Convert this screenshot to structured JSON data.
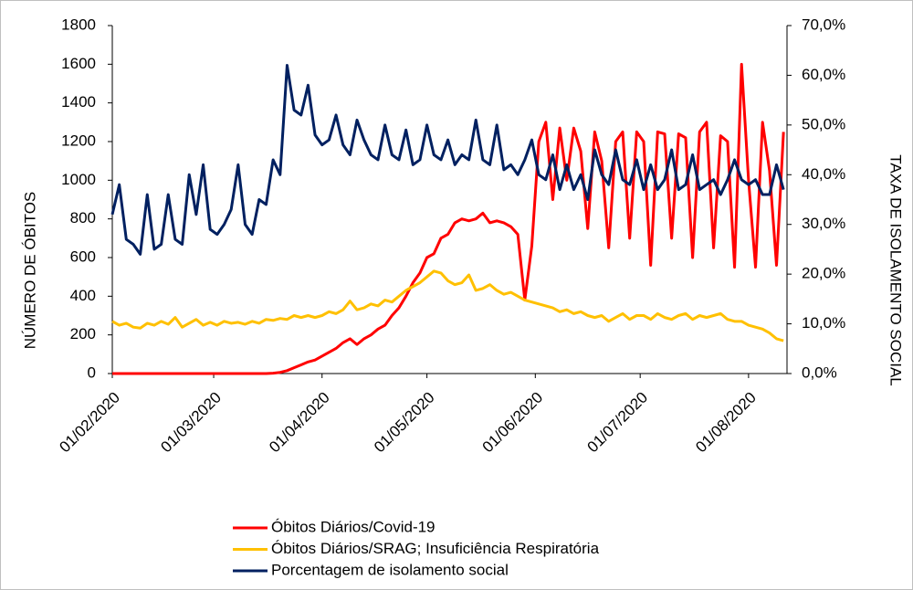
{
  "chart_data": {
    "type": "line",
    "y_label": "NÚMERO DE ÓBITOS",
    "y2_label": "TAXA DE ISOLAMENTO SOCIAL",
    "legend": "bottom",
    "grid": false,
    "x": [
      "01/02/2020",
      "03/02/2020",
      "05/02/2020",
      "07/02/2020",
      "09/02/2020",
      "11/02/2020",
      "13/02/2020",
      "15/02/2020",
      "17/02/2020",
      "19/02/2020",
      "21/02/2020",
      "23/02/2020",
      "25/02/2020",
      "27/02/2020",
      "29/02/2020",
      "02/03/2020",
      "04/03/2020",
      "06/03/2020",
      "08/03/2020",
      "10/03/2020",
      "12/03/2020",
      "14/03/2020",
      "16/03/2020",
      "18/03/2020",
      "20/03/2020",
      "22/03/2020",
      "24/03/2020",
      "26/03/2020",
      "28/03/2020",
      "30/03/2020",
      "01/04/2020",
      "03/04/2020",
      "05/04/2020",
      "07/04/2020",
      "09/04/2020",
      "11/04/2020",
      "13/04/2020",
      "15/04/2020",
      "17/04/2020",
      "19/04/2020",
      "21/04/2020",
      "23/04/2020",
      "25/04/2020",
      "27/04/2020",
      "29/04/2020",
      "01/05/2020",
      "03/05/2020",
      "05/05/2020",
      "07/05/2020",
      "09/05/2020",
      "11/05/2020",
      "13/05/2020",
      "15/05/2020",
      "17/05/2020",
      "19/05/2020",
      "21/05/2020",
      "23/05/2020",
      "25/05/2020",
      "27/05/2020",
      "29/05/2020",
      "31/05/2020",
      "02/06/2020",
      "04/06/2020",
      "06/06/2020",
      "08/06/2020",
      "10/06/2020",
      "12/06/2020",
      "14/06/2020",
      "16/06/2020",
      "18/06/2020",
      "20/06/2020",
      "22/06/2020",
      "24/06/2020",
      "26/06/2020",
      "28/06/2020",
      "30/06/2020",
      "02/07/2020",
      "04/07/2020",
      "06/07/2020",
      "08/07/2020",
      "10/07/2020",
      "12/07/2020",
      "14/07/2020",
      "16/07/2020",
      "18/07/2020",
      "20/07/2020",
      "22/07/2020",
      "24/07/2020",
      "26/07/2020",
      "28/07/2020",
      "30/07/2020",
      "01/08/2020",
      "03/08/2020",
      "05/08/2020",
      "07/08/2020",
      "09/08/2020",
      "11/08/2020"
    ],
    "xlim": [
      "01/02/2020",
      "12/08/2020"
    ],
    "xticks": [
      "01/02/2020",
      "01/03/2020",
      "01/04/2020",
      "01/05/2020",
      "01/06/2020",
      "01/07/2020",
      "01/08/2020"
    ],
    "ylim": [
      0,
      1800
    ],
    "yticks": [
      0,
      200,
      400,
      600,
      800,
      1000,
      1200,
      1400,
      1600,
      1800
    ],
    "y2lim": [
      0,
      70
    ],
    "y2ticks": [
      {
        "value": 0,
        "label": "0,0%"
      },
      {
        "value": 10,
        "label": "10,0%"
      },
      {
        "value": 20,
        "label": "20,0%"
      },
      {
        "value": 30,
        "label": "30,0%"
      },
      {
        "value": 40,
        "label": "40,0%"
      },
      {
        "value": 50,
        "label": "50,0%"
      },
      {
        "value": 60,
        "label": "60,0%"
      },
      {
        "value": 70,
        "label": "70,0%"
      }
    ],
    "series": [
      {
        "name": "Óbitos Diários/Covid-19",
        "color": "#ff0000",
        "values": [
          0,
          0,
          0,
          0,
          0,
          0,
          0,
          0,
          0,
          0,
          0,
          0,
          0,
          0,
          0,
          0,
          0,
          0,
          0,
          0,
          0,
          0,
          0,
          2,
          6,
          15,
          30,
          45,
          60,
          70,
          90,
          110,
          130,
          160,
          180,
          150,
          180,
          200,
          230,
          250,
          300,
          340,
          400,
          470,
          520,
          600,
          620,
          700,
          720,
          780,
          800,
          790,
          800,
          830,
          780,
          790,
          780,
          760,
          720,
          380,
          660,
          1200,
          1300,
          900,
          1270,
          1000,
          1270,
          1150,
          750,
          1250,
          1100,
          650,
          1200,
          1250,
          700,
          1250,
          1200,
          560,
          1250,
          1240,
          700,
          1240,
          1220,
          600,
          1250,
          1300,
          650,
          1230,
          1200,
          550,
          1600,
          1000,
          550,
          1300,
          1050,
          560,
          1250
        ]
      },
      {
        "name": "Óbitos Diários/SRAG; Insuficiência Respiratória",
        "color": "#ffc000",
        "values": [
          270,
          250,
          260,
          240,
          235,
          260,
          250,
          270,
          255,
          290,
          240,
          260,
          280,
          250,
          265,
          250,
          270,
          260,
          265,
          255,
          270,
          260,
          280,
          275,
          285,
          280,
          300,
          290,
          300,
          290,
          300,
          320,
          310,
          330,
          375,
          330,
          340,
          360,
          350,
          380,
          370,
          400,
          430,
          450,
          470,
          500,
          530,
          520,
          480,
          460,
          470,
          510,
          430,
          440,
          460,
          430,
          410,
          420,
          400,
          380,
          370,
          360,
          350,
          340,
          320,
          330,
          310,
          320,
          300,
          290,
          300,
          270,
          290,
          310,
          280,
          300,
          300,
          280,
          310,
          290,
          280,
          300,
          310,
          280,
          300,
          290,
          300,
          310,
          280,
          270,
          270,
          250,
          240,
          230,
          210,
          180,
          170
        ]
      },
      {
        "name": "Porcentagem de isolamento social",
        "color": "#002060",
        "axis": "y2",
        "values": [
          32,
          38,
          27,
          26,
          24,
          36,
          25,
          26,
          36,
          27,
          26,
          40,
          32,
          42,
          29,
          28,
          30,
          33,
          42,
          30,
          28,
          35,
          34,
          43,
          40,
          62,
          53,
          52,
          58,
          48,
          46,
          47,
          52,
          46,
          44,
          51,
          47,
          44,
          43,
          50,
          44,
          43,
          49,
          42,
          43,
          50,
          44,
          43,
          47,
          42,
          44,
          43,
          51,
          43,
          42,
          50,
          41,
          42,
          40,
          43,
          47,
          40,
          39,
          44,
          37,
          42,
          37,
          40,
          35,
          45,
          40,
          38,
          45,
          39,
          38,
          43,
          37,
          42,
          37,
          39,
          45,
          37,
          38,
          44,
          37,
          38,
          39,
          36,
          39,
          43,
          39,
          38,
          39,
          36,
          36,
          42,
          37
        ]
      }
    ]
  }
}
